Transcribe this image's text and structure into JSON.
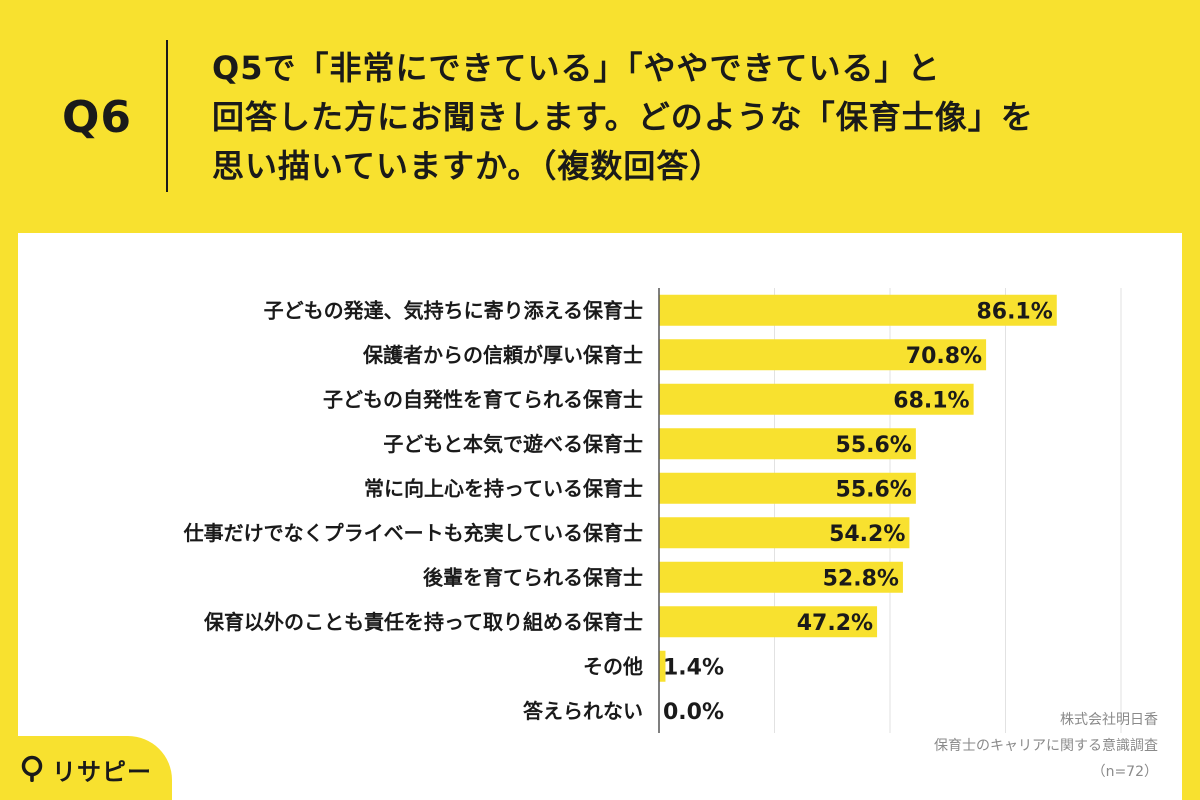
{
  "question": {
    "number": "Q6",
    "lines": [
      "Q5で「非常にできている」「ややできている」と",
      "回答した方にお聞きします。どのような「保育士像」を",
      "思い描いていますか。（複数回答）"
    ]
  },
  "colors": {
    "background": "#f8e12f",
    "bar": "#f8e12f",
    "card": "#ffffff",
    "text": "#1a1a1a",
    "grid": "#e2e2e2"
  },
  "chart_data": {
    "type": "bar",
    "orientation": "horizontal",
    "categories": [
      "子どもの発達、気持ちに寄り添える保育士",
      "保護者からの信頼が厚い保育士",
      "子どもの自発性を育てられる保育士",
      "子どもと本気で遊べる保育士",
      "常に向上心を持っている保育士",
      "仕事だけでなくプライベートも充実している保育士",
      "後輩を育てられる保育士",
      "保育以外のことも責任を持って取り組める保育士",
      "その他",
      "答えられない"
    ],
    "values": [
      86.1,
      70.8,
      68.1,
      55.6,
      55.6,
      54.2,
      52.8,
      47.2,
      1.4,
      0.0
    ],
    "value_labels": [
      "86.1%",
      "70.8%",
      "68.1%",
      "55.6%",
      "55.6%",
      "54.2%",
      "52.8%",
      "47.2%",
      "1.4%",
      "0.0%"
    ],
    "xlim": [
      0,
      100
    ],
    "grid": true,
    "legend": "none"
  },
  "source": {
    "company": "株式会社明日香",
    "survey": "保育士のキャリアに関する意識調査",
    "sample": "（n=72）"
  },
  "logo": {
    "icon": "pin-icon",
    "text": "リサピー"
  }
}
